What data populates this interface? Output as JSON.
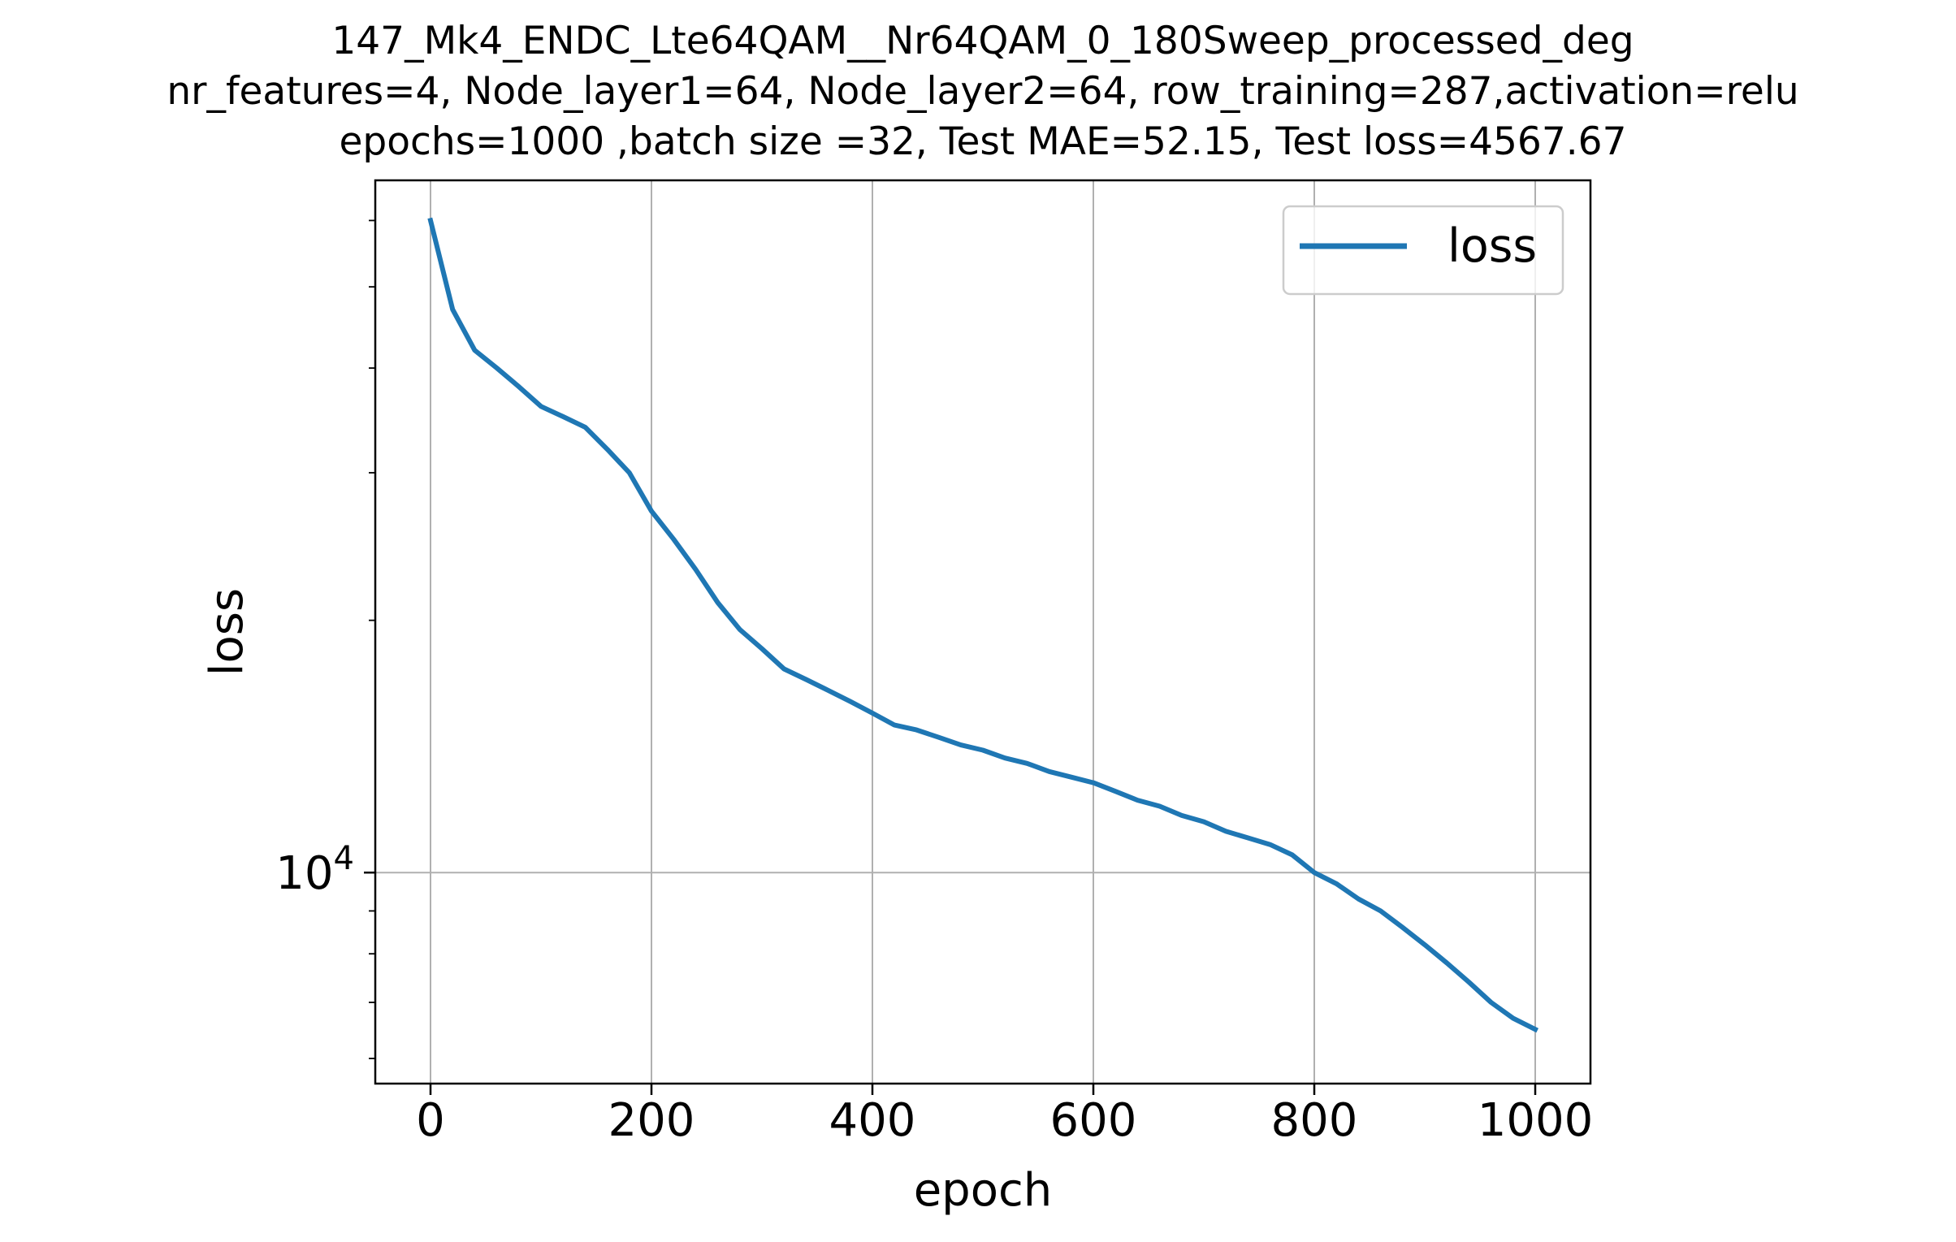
{
  "chart_data": {
    "type": "line",
    "title_lines": [
      "147_Mk4_ENDC_Lte64QAM__Nr64QAM_0_180Sweep_processed_deg",
      "nr_features=4, Node_layer1=64, Node_layer2=64, row_training=287,activation=relu",
      "epochs=1000 ,batch size =32, Test MAE=52.15, Test loss=4567.67"
    ],
    "xlabel": "epoch",
    "ylabel": "loss",
    "yscale": "log",
    "xlim": [
      -50,
      1050
    ],
    "ylim": [
      5600,
      67000
    ],
    "x_ticks": [
      {
        "value": 0,
        "label": "0"
      },
      {
        "value": 200,
        "label": "200"
      },
      {
        "value": 400,
        "label": "400"
      },
      {
        "value": 600,
        "label": "600"
      },
      {
        "value": 800,
        "label": "800"
      },
      {
        "value": 1000,
        "label": "1000"
      }
    ],
    "y_major_ticks": [
      {
        "value": 10000,
        "base": "10",
        "exponent": "4"
      }
    ],
    "y_minor_ticks": [
      6000,
      7000,
      8000,
      9000,
      20000,
      30000,
      40000,
      50000,
      60000
    ],
    "grid": true,
    "legend": {
      "position": "upper right",
      "entries": [
        "loss"
      ]
    },
    "series": [
      {
        "name": "loss",
        "color": "#1f77b4",
        "x": [
          0,
          20,
          40,
          60,
          80,
          100,
          120,
          140,
          160,
          180,
          200,
          220,
          240,
          260,
          280,
          300,
          320,
          340,
          360,
          380,
          400,
          420,
          440,
          460,
          480,
          500,
          520,
          540,
          560,
          580,
          600,
          620,
          640,
          660,
          680,
          700,
          720,
          740,
          760,
          780,
          800,
          820,
          840,
          860,
          880,
          900,
          920,
          940,
          960,
          980,
          1000
        ],
        "y": [
          60000,
          47000,
          42000,
          40000,
          38000,
          36000,
          35000,
          34000,
          32000,
          30000,
          27000,
          25000,
          23000,
          21000,
          19500,
          18500,
          17500,
          17000,
          16500,
          16000,
          15500,
          15000,
          14800,
          14500,
          14200,
          14000,
          13700,
          13500,
          13200,
          13000,
          12800,
          12500,
          12200,
          12000,
          11700,
          11500,
          11200,
          11000,
          10800,
          10500,
          10000,
          9700,
          9300,
          9000,
          8600,
          8200,
          7800,
          7400,
          7000,
          6700,
          6500
        ]
      }
    ]
  }
}
